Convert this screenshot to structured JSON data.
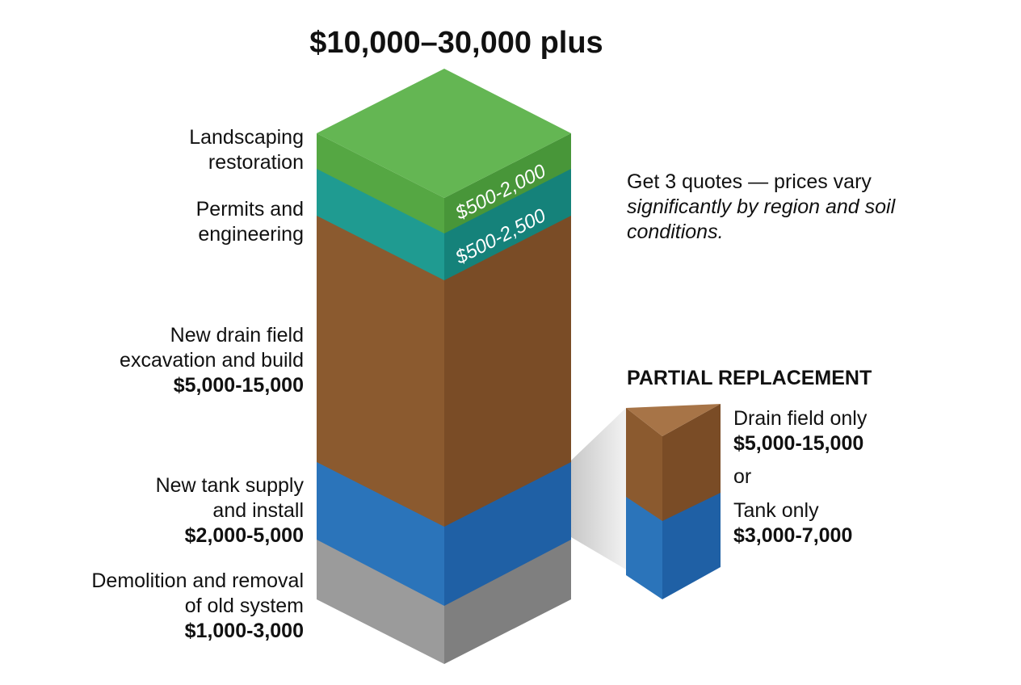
{
  "title": "$10,000–30,000 plus",
  "layers": [
    {
      "label": "Landscaping restoration",
      "cost": "$500-2,000"
    },
    {
      "label": "Permits and engineering",
      "cost": "$500-2,500"
    },
    {
      "label": "New drain field excavation and build",
      "cost": "$5,000-15,000"
    },
    {
      "label": "New tank supply and install",
      "cost": "$2,000-5,000"
    },
    {
      "label": "Demolition and removal of old system",
      "cost": "$1,000-3,000"
    }
  ],
  "note": {
    "text": "Get 3 quotes — prices vary",
    "emphasis": "significantly by region and soil conditions."
  },
  "partial": {
    "heading": "PARTIAL REPLACEMENT",
    "options": [
      {
        "label": "Drain field only",
        "cost": "$5,000-15,000"
      },
      {
        "label": "Tank only",
        "cost": "$3,000-7,000"
      }
    ],
    "separator": "or"
  }
}
